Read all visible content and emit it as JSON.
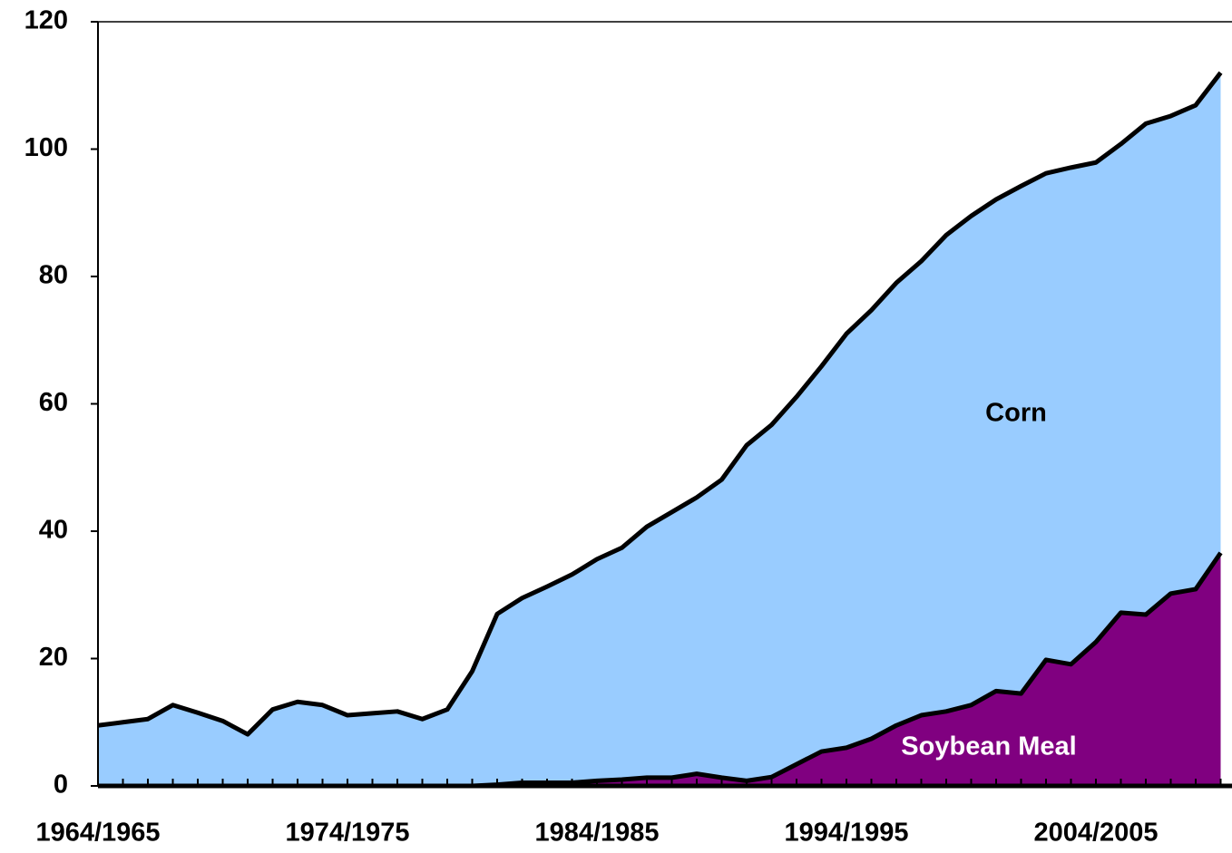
{
  "chart_data": {
    "type": "stacked-area",
    "categories": [
      "1964/1965",
      null,
      null,
      null,
      null,
      null,
      null,
      null,
      null,
      null,
      "1974/1975",
      null,
      null,
      null,
      null,
      null,
      null,
      null,
      null,
      null,
      "1984/1985",
      null,
      null,
      null,
      null,
      null,
      null,
      null,
      null,
      null,
      "1994/1995",
      null,
      null,
      null,
      null,
      null,
      null,
      null,
      null,
      null,
      "2004/2005",
      null,
      null,
      null,
      null,
      null
    ],
    "series": [
      {
        "name": "Soybean Meal",
        "color": "#800080",
        "label_color": "#ffffff",
        "values": [
          0,
          0,
          0,
          0,
          0,
          0,
          0,
          0,
          0,
          0,
          0,
          0,
          0,
          0,
          0,
          0,
          0.2,
          0.5,
          0.5,
          0.5,
          0.8,
          1.0,
          1.3,
          1.3,
          1.9,
          1.3,
          0.8,
          1.4,
          3.4,
          5.4,
          6,
          7.4,
          9.5,
          11.1,
          11.7,
          12.7,
          14.9,
          14.5,
          19.8,
          19.1,
          22.6,
          27.2,
          26.9,
          30.2,
          30.9,
          36.6
        ]
      },
      {
        "name": "Corn",
        "color": "#99ccff",
        "label_color": "#000000",
        "values": [
          9.5,
          10,
          10.5,
          12.7,
          11.5,
          10.2,
          8.1,
          12,
          13.2,
          12.7,
          11.1,
          11.4,
          11.7,
          10.5,
          12,
          18,
          26.8,
          29,
          30.8,
          32.7,
          34.8,
          36.4,
          39.4,
          41.7,
          43.4,
          46.8,
          52.7,
          55.3,
          57.7,
          60.5,
          65,
          67.3,
          69.5,
          71.3,
          74.8,
          76.8,
          77.2,
          79.7,
          76.4,
          78,
          75.3,
          73.6,
          77.1,
          75,
          76,
          75.4
        ]
      }
    ],
    "ylim": [
      0,
      120
    ],
    "yticks": [
      0,
      20,
      40,
      60,
      80,
      100,
      120
    ]
  }
}
